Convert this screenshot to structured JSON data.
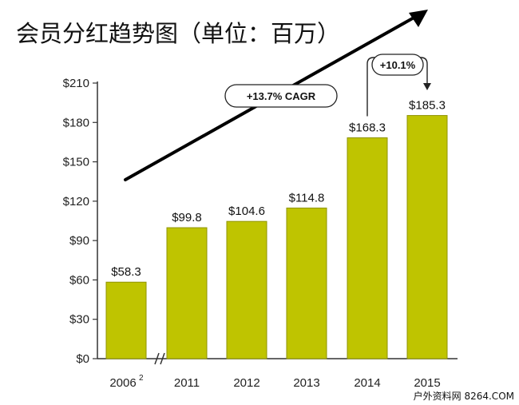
{
  "title": "会员分红趋势图（单位：百万）",
  "watermark": "户外资料网 8264.COM",
  "colors": {
    "bar": "#bfc400",
    "bar_stroke": "#8f9300",
    "axis": "#333333",
    "text": "#111111"
  },
  "chart_data": {
    "type": "bar",
    "title": "会员分红趋势图（单位：百万）",
    "xlabel": "",
    "ylabel": "",
    "categories": [
      "2006",
      "2011",
      "2012",
      "2013",
      "2014",
      "2015"
    ],
    "category_superscripts": [
      "2",
      "",
      "",
      "",
      "",
      ""
    ],
    "values": [
      58.3,
      99.8,
      104.6,
      114.8,
      168.3,
      185.3
    ],
    "value_labels": [
      "$58.3",
      "$99.8",
      "$104.6",
      "$114.8",
      "$168.3",
      "$185.3"
    ],
    "ylim": [
      0,
      210
    ],
    "yticks": [
      0,
      30,
      60,
      90,
      120,
      150,
      180,
      210
    ],
    "ytick_labels": [
      "$0",
      "$30",
      "$60",
      "$90",
      "$120",
      "$150",
      "$180",
      "$210"
    ],
    "axis_break_after_category": "2006",
    "grid": false,
    "legend": "none",
    "annotations": [
      {
        "text": "+13.7% CAGR",
        "kind": "trend-arrow"
      },
      {
        "text": "+10.1%",
        "kind": "bracket-arrow",
        "from": "2014",
        "to": "2015"
      }
    ]
  }
}
